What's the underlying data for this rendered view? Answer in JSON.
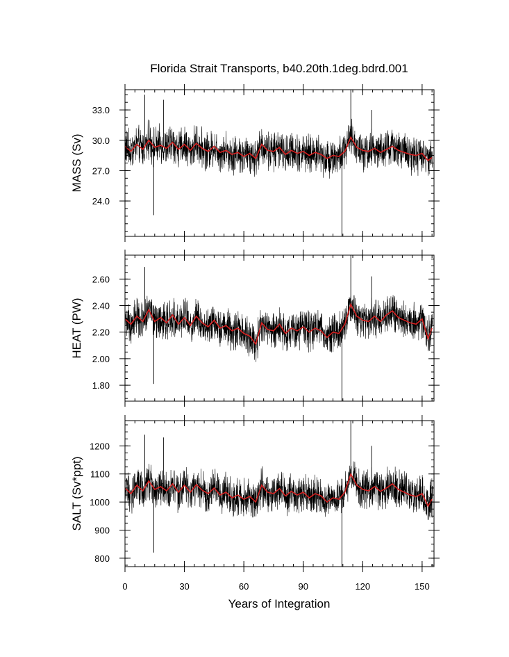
{
  "chart_data": {
    "type": "line",
    "title": "Florida Strait Transports, b40.20th.1deg.bdrd.001",
    "xlabel": "Years of Integration",
    "xlim": [
      0,
      156
    ],
    "xticks": [
      0,
      30,
      60,
      90,
      120,
      150
    ],
    "xtick_labels": [
      "0",
      "30",
      "60",
      "90",
      "120",
      "150"
    ],
    "colors": {
      "monthly": "#000000",
      "smoothed": "#d62020",
      "axes": "#000000"
    },
    "panels": [
      {
        "name": "mass",
        "ylabel": "MASS (Sv)",
        "ylim": [
          20.5,
          35.0
        ],
        "yticks": [
          24.0,
          27.0,
          30.0,
          33.0
        ],
        "ytick_labels": [
          "24.0",
          "27.0",
          "30.0",
          "33.0"
        ],
        "series": [
          {
            "role": "smoothed",
            "x": [
              0,
              3,
              6,
              9,
              12,
              15,
              18,
              21,
              24,
              27,
              30,
              33,
              36,
              39,
              42,
              45,
              48,
              51,
              54,
              57,
              60,
              63,
              66,
              69,
              72,
              75,
              78,
              81,
              84,
              87,
              90,
              93,
              96,
              99,
              102,
              105,
              108,
              111,
              114,
              117,
              120,
              123,
              126,
              129,
              132,
              135,
              138,
              141,
              144,
              147,
              150,
              153,
              155
            ],
            "y": [
              29.4,
              28.9,
              29.6,
              29.1,
              30.0,
              29.3,
              29.5,
              29.2,
              29.8,
              29.1,
              29.6,
              29.0,
              29.7,
              29.2,
              28.9,
              29.4,
              28.8,
              29.0,
              28.6,
              28.8,
              28.4,
              28.7,
              28.2,
              29.6,
              29.0,
              28.9,
              29.3,
              28.6,
              29.0,
              28.7,
              28.9,
              28.5,
              28.8,
              28.6,
              28.2,
              28.5,
              28.4,
              28.9,
              30.3,
              29.3,
              29.0,
              28.9,
              29.2,
              28.8,
              29.1,
              29.4,
              29.0,
              28.8,
              28.6,
              28.5,
              28.7,
              28.0,
              28.3
            ]
          }
        ],
        "monthly_spikes": [
          {
            "x": 14.5,
            "y": 22.6
          },
          {
            "x": 10.0,
            "y": 34.5
          },
          {
            "x": 19.5,
            "y": 34.0
          },
          {
            "x": 109.5,
            "y": 20.5
          },
          {
            "x": 114.0,
            "y": 35.0
          },
          {
            "x": 124.5,
            "y": 33.0
          }
        ]
      },
      {
        "name": "heat",
        "ylabel": "HEAT (PW)",
        "ylim": [
          1.68,
          2.78
        ],
        "yticks": [
          1.8,
          2.0,
          2.2,
          2.4,
          2.6
        ],
        "ytick_labels": [
          "1.80",
          "2.00",
          "2.20",
          "2.40",
          "2.60"
        ],
        "series": [
          {
            "role": "smoothed",
            "x": [
              0,
              3,
              6,
              9,
              12,
              15,
              18,
              21,
              24,
              27,
              30,
              33,
              36,
              39,
              42,
              45,
              48,
              51,
              54,
              57,
              60,
              63,
              66,
              69,
              72,
              75,
              78,
              81,
              84,
              87,
              90,
              93,
              96,
              99,
              102,
              105,
              108,
              111,
              114,
              117,
              120,
              123,
              126,
              129,
              132,
              135,
              138,
              141,
              144,
              147,
              150,
              153,
              155
            ],
            "y": [
              2.3,
              2.26,
              2.32,
              2.28,
              2.37,
              2.28,
              2.31,
              2.27,
              2.33,
              2.26,
              2.31,
              2.25,
              2.32,
              2.27,
              2.24,
              2.29,
              2.23,
              2.25,
              2.21,
              2.23,
              2.19,
              2.17,
              2.11,
              2.27,
              2.22,
              2.21,
              2.26,
              2.19,
              2.23,
              2.21,
              2.24,
              2.2,
              2.23,
              2.21,
              2.16,
              2.2,
              2.19,
              2.26,
              2.41,
              2.32,
              2.29,
              2.28,
              2.32,
              2.28,
              2.33,
              2.36,
              2.31,
              2.29,
              2.27,
              2.26,
              2.3,
              2.15,
              2.23
            ]
          }
        ],
        "monthly_spikes": [
          {
            "x": 14.5,
            "y": 1.81
          },
          {
            "x": 10.0,
            "y": 2.69
          },
          {
            "x": 109.5,
            "y": 1.68
          },
          {
            "x": 114.0,
            "y": 2.78
          },
          {
            "x": 124.5,
            "y": 2.62
          }
        ]
      },
      {
        "name": "salt",
        "ylabel": "SALT (Sv*ppt)",
        "ylim": [
          770,
          1290
        ],
        "yticks": [
          800,
          900,
          1000,
          1100,
          1200
        ],
        "ytick_labels": [
          "800",
          "900",
          "1000",
          "1100",
          "1200"
        ],
        "series": [
          {
            "role": "smoothed",
            "x": [
              0,
              3,
              6,
              9,
              12,
              15,
              18,
              21,
              24,
              27,
              30,
              33,
              36,
              39,
              42,
              45,
              48,
              51,
              54,
              57,
              60,
              63,
              66,
              69,
              72,
              75,
              78,
              81,
              84,
              87,
              90,
              93,
              96,
              99,
              102,
              105,
              108,
              111,
              114,
              117,
              120,
              123,
              126,
              129,
              132,
              135,
              138,
              141,
              144,
              147,
              150,
              153,
              155
            ],
            "y": [
              1050,
              1030,
              1060,
              1040,
              1075,
              1045,
              1055,
              1040,
              1065,
              1035,
              1060,
              1035,
              1062,
              1042,
              1030,
              1050,
              1025,
              1035,
              1015,
              1025,
              1010,
              1020,
              1000,
              1060,
              1035,
              1030,
              1048,
              1022,
              1038,
              1025,
              1035,
              1015,
              1030,
              1022,
              1000,
              1015,
              1010,
              1035,
              1100,
              1060,
              1045,
              1040,
              1055,
              1038,
              1050,
              1065,
              1045,
              1035,
              1025,
              1020,
              1030,
              985,
              1010
            ]
          }
        ],
        "monthly_spikes": [
          {
            "x": 14.5,
            "y": 820
          },
          {
            "x": 10.0,
            "y": 1240
          },
          {
            "x": 19.5,
            "y": 1230
          },
          {
            "x": 109.5,
            "y": 770
          },
          {
            "x": 114.0,
            "y": 1290
          },
          {
            "x": 124.5,
            "y": 1200
          }
        ]
      }
    ]
  }
}
